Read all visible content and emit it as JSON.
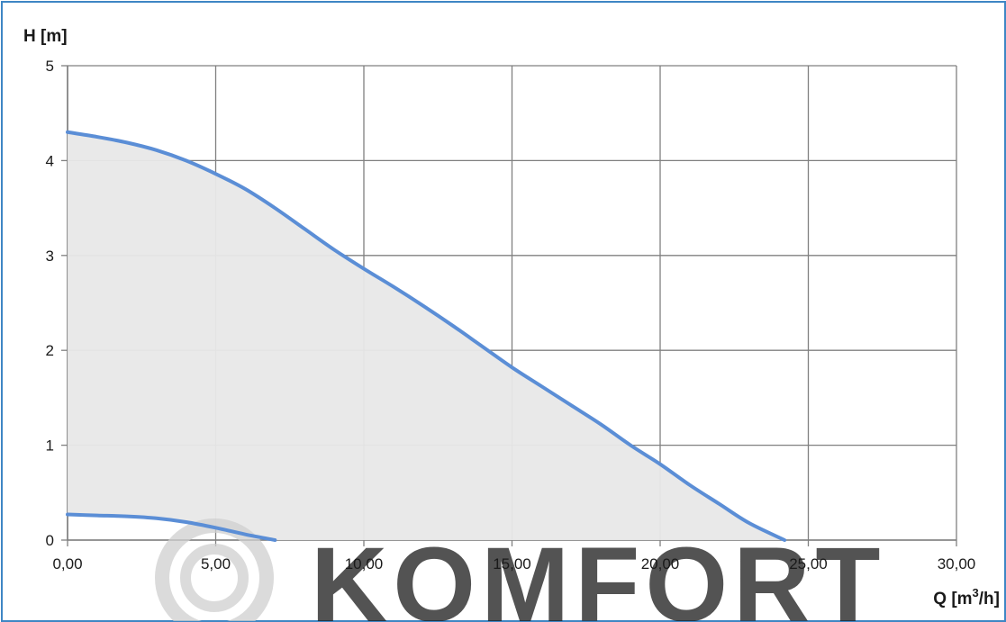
{
  "watermark": {
    "text": "KOMFORT",
    "color": "#c9c9c9"
  },
  "chart_data": {
    "type": "area",
    "title": "",
    "xlabel": "",
    "ylabel": "H [m]",
    "xlabel_parts": {
      "main": "Q [m",
      "sup": "3",
      "tail": "/h]"
    },
    "xlim": [
      0,
      30
    ],
    "ylim": [
      0,
      5
    ],
    "x_ticks": [
      0,
      5,
      10,
      15,
      20,
      25,
      30
    ],
    "x_tick_labels": [
      "0,00",
      "5,00",
      "10,00",
      "15,00",
      "20,00",
      "25,00",
      "30,00"
    ],
    "y_ticks": [
      0,
      1,
      2,
      3,
      4,
      5
    ],
    "y_tick_labels": [
      "0",
      "1",
      "2",
      "3",
      "4",
      "5"
    ],
    "grid": true,
    "legend": "none",
    "colors": {
      "line": "#5b8ed6",
      "fill": "#e8e8e8",
      "grid": "#808080"
    },
    "series": [
      {
        "x": [
          0,
          1,
          2,
          3,
          4,
          5,
          6,
          7,
          8,
          9,
          10,
          11,
          12,
          13,
          14,
          15,
          16,
          17,
          18,
          19,
          20,
          21,
          22,
          23,
          24.2
        ],
        "y": [
          4.3,
          4.25,
          4.19,
          4.11,
          4.0,
          3.86,
          3.7,
          3.5,
          3.28,
          3.06,
          2.86,
          2.67,
          2.47,
          2.26,
          2.04,
          1.82,
          1.62,
          1.42,
          1.22,
          1.0,
          0.8,
          0.58,
          0.38,
          0.18,
          0.0
        ]
      },
      {
        "x": [
          0,
          1,
          2,
          3,
          4,
          5,
          6,
          7
        ],
        "y": [
          0.27,
          0.26,
          0.25,
          0.23,
          0.19,
          0.13,
          0.06,
          0.0
        ]
      }
    ]
  }
}
